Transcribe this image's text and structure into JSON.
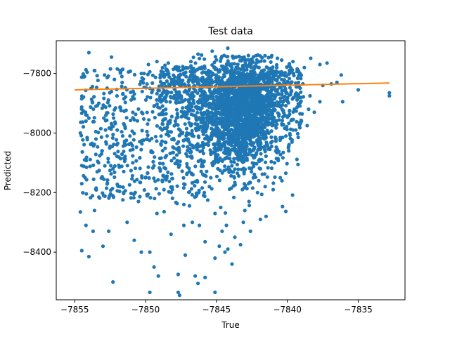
{
  "chart_data": {
    "type": "scatter",
    "title": "Test data",
    "xlabel": "True",
    "ylabel": "Predicted",
    "xlim": [
      -7856.3,
      -7831.7
    ],
    "ylim": [
      -8560,
      -7690
    ],
    "x_ticks": [
      -7855,
      -7850,
      -7845,
      -7840,
      -7835
    ],
    "x_tick_labels": [
      "−7855",
      "−7850",
      "−7845",
      "−7840",
      "−7835"
    ],
    "y_ticks": [
      -7800,
      -8000,
      -8200,
      -8400
    ],
    "y_tick_labels": [
      "−7800",
      "−8000",
      "−8200",
      "−8400"
    ],
    "grid": false,
    "legend": "none",
    "colors": {
      "scatter": "#1f77b4",
      "fit_line": "#ff7f0e",
      "axes": "#000000",
      "background": "#ffffff"
    },
    "series": [
      {
        "kind": "scatter",
        "point_count_approx": 5000,
        "dense_core": {
          "x_center": -7843.3,
          "y_center": -7930,
          "x_spread": 1.3,
          "y_spread": 90
        },
        "points": [
          [
            -7854.3,
            -7810
          ],
          [
            -7854.0,
            -7730
          ],
          [
            -7852.4,
            -7745
          ],
          [
            -7853.6,
            -7790
          ],
          [
            -7852.9,
            -7805
          ],
          [
            -7851.8,
            -7790
          ],
          [
            -7851.2,
            -7795
          ],
          [
            -7850.3,
            -7800
          ],
          [
            -7849.8,
            -7770
          ],
          [
            -7849.2,
            -7760
          ],
          [
            -7848.4,
            -7765
          ],
          [
            -7847.7,
            -7790
          ],
          [
            -7846.8,
            -7760
          ],
          [
            -7846.2,
            -7750
          ],
          [
            -7845.3,
            -7725
          ],
          [
            -7844.2,
            -7715
          ],
          [
            -7843.6,
            -7745
          ],
          [
            -7842.2,
            -7740
          ],
          [
            -7841.1,
            -7740
          ],
          [
            -7840.4,
            -7755
          ],
          [
            -7839.6,
            -7760
          ],
          [
            -7838.8,
            -7780
          ],
          [
            -7837.7,
            -7770
          ],
          [
            -7837.2,
            -7765
          ],
          [
            -7836.2,
            -7805
          ],
          [
            -7835.0,
            -7855
          ],
          [
            -7832.8,
            -7865
          ],
          [
            -7832.8,
            -7875
          ],
          [
            -7836.1,
            -7895
          ],
          [
            -7837.7,
            -7895
          ],
          [
            -7838.1,
            -7930
          ],
          [
            -7838.6,
            -7975
          ],
          [
            -7839.6,
            -7990
          ],
          [
            -7840.1,
            -8010
          ],
          [
            -7840.8,
            -8020
          ],
          [
            -7841.6,
            -8045
          ],
          [
            -7841.4,
            -8040
          ],
          [
            -7841.9,
            -8120
          ],
          [
            -7842.4,
            -8150
          ],
          [
            -7842.1,
            -8200
          ],
          [
            -7842.7,
            -8230
          ],
          [
            -7843.0,
            -8260
          ],
          [
            -7843.1,
            -8300
          ],
          [
            -7842.6,
            -8330
          ],
          [
            -7843.7,
            -8350
          ],
          [
            -7843.3,
            -8375
          ],
          [
            -7844.6,
            -8330
          ],
          [
            -7844.8,
            -8380
          ],
          [
            -7844.2,
            -8390
          ],
          [
            -7844.4,
            -8400
          ],
          [
            -7843.9,
            -8440
          ],
          [
            -7845.1,
            -8420
          ],
          [
            -7845.8,
            -8365
          ],
          [
            -7846.2,
            -8310
          ],
          [
            -7846.7,
            -8300
          ],
          [
            -7847.3,
            -8310
          ],
          [
            -7847.2,
            -8410
          ],
          [
            -7847.7,
            -8475
          ],
          [
            -7846.5,
            -8480
          ],
          [
            -7846.3,
            -8505
          ],
          [
            -7845.8,
            -8485
          ],
          [
            -7845.1,
            -8535
          ],
          [
            -7847.7,
            -8535
          ],
          [
            -7847.6,
            -8545
          ],
          [
            -7849.4,
            -8450
          ],
          [
            -7849.7,
            -8400
          ],
          [
            -7850.3,
            -8400
          ],
          [
            -7849.1,
            -8480
          ],
          [
            -7849.7,
            -8535
          ],
          [
            -7850.8,
            -8360
          ],
          [
            -7851.3,
            -8300
          ],
          [
            -7852.3,
            -8500
          ],
          [
            -7852.6,
            -8330
          ],
          [
            -7853.0,
            -8380
          ],
          [
            -7853.6,
            -8260
          ],
          [
            -7853.7,
            -8330
          ],
          [
            -7854.2,
            -8310
          ],
          [
            -7854.5,
            -8395
          ],
          [
            -7854.0,
            -8415
          ],
          [
            -7854.6,
            -8265
          ],
          [
            -7854.5,
            -8170
          ],
          [
            -7854.3,
            -8090
          ],
          [
            -7854.6,
            -8000
          ],
          [
            -7854.2,
            -7960
          ],
          [
            -7854.5,
            -7885
          ],
          [
            -7854.0,
            -7950
          ],
          [
            -7853.5,
            -8020
          ],
          [
            -7853.1,
            -8070
          ],
          [
            -7852.8,
            -7940
          ],
          [
            -7852.3,
            -8120
          ],
          [
            -7851.8,
            -8180
          ],
          [
            -7851.4,
            -8040
          ],
          [
            -7850.9,
            -8100
          ],
          [
            -7850.5,
            -8230
          ],
          [
            -7850.0,
            -8150
          ],
          [
            -7849.6,
            -8060
          ],
          [
            -7849.2,
            -8270
          ],
          [
            -7848.7,
            -8190
          ],
          [
            -7848.2,
            -8340
          ],
          [
            -7847.8,
            -8100
          ],
          [
            -7847.3,
            -8240
          ],
          [
            -7846.9,
            -8130
          ],
          [
            -7846.4,
            -8210
          ],
          [
            -7846.0,
            -8060
          ],
          [
            -7845.5,
            -8180
          ],
          [
            -7845.1,
            -8270
          ],
          [
            -7844.7,
            -8250
          ],
          [
            -7844.3,
            -8310
          ],
          [
            -7841.9,
            -8290
          ],
          [
            -7841.5,
            -8280
          ],
          [
            -7841.0,
            -8190
          ],
          [
            -7840.5,
            -8150
          ],
          [
            -7840.9,
            -8100
          ],
          [
            -7839.9,
            -8060
          ],
          [
            -7839.4,
            -7990
          ],
          [
            -7839.0,
            -7960
          ],
          [
            -7838.5,
            -7920
          ],
          [
            -7838.4,
            -7875
          ],
          [
            -7837.5,
            -7840
          ],
          [
            -7836.9,
            -7835
          ],
          [
            -7836.5,
            -7830
          ],
          [
            -7838.9,
            -7835
          ],
          [
            -7839.3,
            -7845
          ],
          [
            -7840.3,
            -7880
          ],
          [
            -7841.2,
            -7935
          ],
          [
            -7852.2,
            -7820
          ],
          [
            -7851.6,
            -7870
          ],
          [
            -7850.8,
            -7885
          ],
          [
            -7850.2,
            -7935
          ],
          [
            -7849.4,
            -7910
          ],
          [
            -7848.6,
            -7880
          ],
          [
            -7847.9,
            -7960
          ],
          [
            -7847.1,
            -7985
          ],
          [
            -7846.6,
            -7900
          ],
          [
            -7845.9,
            -7860
          ],
          [
            -7853.3,
            -7900
          ],
          [
            -7852.0,
            -7990
          ],
          [
            -7851.1,
            -8010
          ],
          [
            -7849.9,
            -7995
          ],
          [
            -7848.9,
            -8040
          ],
          [
            -7848.0,
            -8050
          ],
          [
            -7847.0,
            -8020
          ],
          [
            -7846.1,
            -8090
          ],
          [
            -7845.4,
            -8150
          ],
          [
            -7844.9,
            -8120
          ]
        ]
      },
      {
        "kind": "line",
        "points": [
          [
            -7855.0,
            -7855
          ],
          [
            -7832.8,
            -7832
          ]
        ]
      }
    ]
  }
}
